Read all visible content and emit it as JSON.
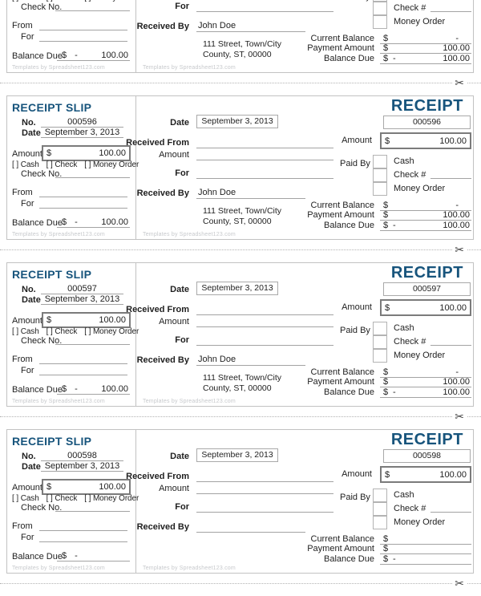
{
  "colors": {
    "title_blue": "#17547c",
    "border_gray": "#c2c2c2",
    "line_gray": "#a3a3a3",
    "amount_box_border": "#7b7b7b",
    "watermark_gray": "#c7c9cc"
  },
  "labels": {
    "slip_title": "RECEIPT SLIP",
    "receipt_title": "RECEIPT",
    "no": "No.",
    "date": "Date",
    "amount": "Amount",
    "cash_opt": "[ ] Cash",
    "check_opt": "[ ] Check",
    "money_order_opt": "[ ] Money Order",
    "check_no": "Check No.",
    "from": "From",
    "for": "For",
    "balance_due": "Balance Due",
    "received_from": "Received From",
    "received_by": "Received By",
    "paid_by": "Paid By",
    "cash": "Cash",
    "check_hash": "Check #",
    "money_order": "Money Order",
    "current_balance": "Current Balance",
    "payment_amount": "Payment Amount",
    "currency": "$",
    "dash": "-",
    "watermark": "Templates by Spreadsheet123.com",
    "scissors": "✂"
  },
  "receipts": [
    {
      "slip_balance_value": "100.00",
      "received_by_value": "John Doe",
      "address_line1": "111 Street, Town/City",
      "address_line2": "County, ST, 00000",
      "current_balance_value": "-",
      "payment_amount_value": "100.00",
      "balance_due_value": "100.00"
    },
    {
      "slip_no": "000596",
      "slip_date": "September 3, 2013",
      "slip_amount_value": "100.00",
      "slip_balance_value": "100.00",
      "receipt_no": "000596",
      "receipt_date": "September 3, 2013",
      "receipt_amount_value": "100.00",
      "received_by_value": "John Doe",
      "address_line1": "111 Street, Town/City",
      "address_line2": "County, ST, 00000",
      "current_balance_value": "-",
      "payment_amount_value": "100.00",
      "balance_due_value": "100.00"
    },
    {
      "slip_no": "000597",
      "slip_date": "September 3, 2013",
      "slip_amount_value": "100.00",
      "slip_balance_value": "100.00",
      "receipt_no": "000597",
      "receipt_date": "September 3, 2013",
      "receipt_amount_value": "100.00",
      "received_by_value": "John Doe",
      "address_line1": "111 Street, Town/City",
      "address_line2": "County, ST, 00000",
      "current_balance_value": "-",
      "payment_amount_value": "100.00",
      "balance_due_value": "100.00"
    },
    {
      "slip_no": "000598",
      "slip_date": "September 3, 2013",
      "slip_amount_value": "100.00",
      "receipt_no": "000598",
      "receipt_date": "September 3, 2013",
      "receipt_amount_value": "100.00"
    }
  ]
}
